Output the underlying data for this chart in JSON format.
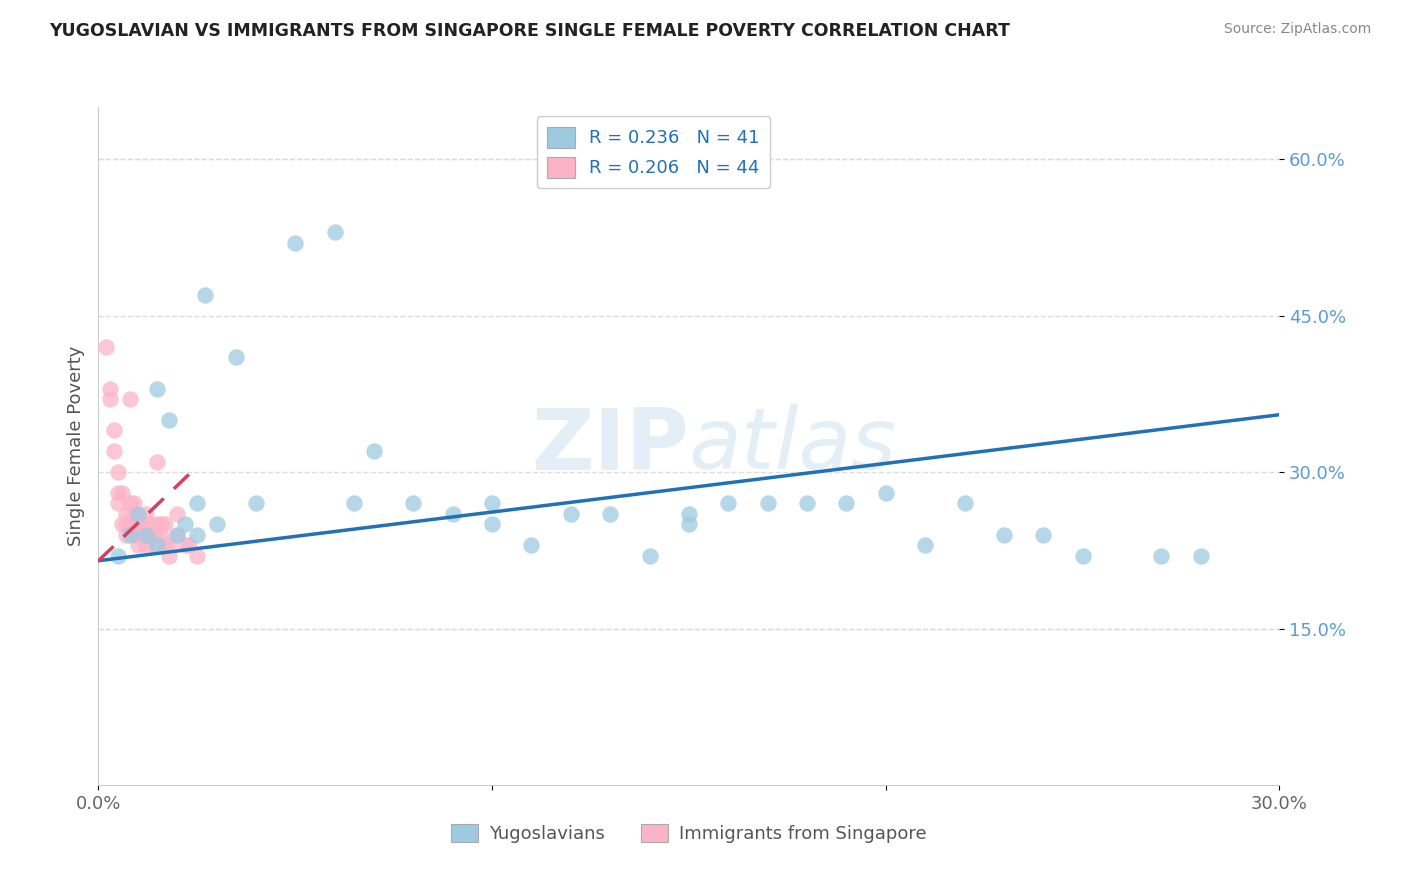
{
  "title": "YUGOSLAVIAN VS IMMIGRANTS FROM SINGAPORE SINGLE FEMALE POVERTY CORRELATION CHART",
  "source": "Source: ZipAtlas.com",
  "ylabel_label": "Single Female Poverty",
  "watermark": "ZIPatlas",
  "xlim": [
    0.0,
    0.3
  ],
  "ylim": [
    0.0,
    0.65
  ],
  "legend_r1": "R = 0.236",
  "legend_n1": "N = 41",
  "legend_r2": "R = 0.206",
  "legend_n2": "N = 44",
  "legend_label1": "Yugoslavians",
  "legend_label2": "Immigrants from Singapore",
  "color_blue": "#9ecae1",
  "color_pink": "#fbb4c7",
  "color_line_blue": "#2171b5",
  "color_line_pink": "#d44060",
  "blue_x": [
    0.005,
    0.008,
    0.01,
    0.012,
    0.015,
    0.015,
    0.018,
    0.02,
    0.022,
    0.025,
    0.025,
    0.027,
    0.03,
    0.035,
    0.04,
    0.05,
    0.06,
    0.065,
    0.07,
    0.08,
    0.09,
    0.1,
    0.1,
    0.11,
    0.12,
    0.13,
    0.14,
    0.15,
    0.15,
    0.16,
    0.17,
    0.18,
    0.19,
    0.2,
    0.21,
    0.22,
    0.23,
    0.24,
    0.25,
    0.27,
    0.28
  ],
  "blue_y": [
    0.22,
    0.24,
    0.26,
    0.24,
    0.38,
    0.23,
    0.35,
    0.24,
    0.25,
    0.24,
    0.27,
    0.47,
    0.25,
    0.41,
    0.27,
    0.52,
    0.53,
    0.27,
    0.32,
    0.27,
    0.26,
    0.27,
    0.25,
    0.23,
    0.26,
    0.26,
    0.22,
    0.26,
    0.25,
    0.27,
    0.27,
    0.27,
    0.27,
    0.28,
    0.23,
    0.27,
    0.24,
    0.24,
    0.22,
    0.22,
    0.22
  ],
  "pink_x": [
    0.002,
    0.003,
    0.003,
    0.004,
    0.004,
    0.005,
    0.005,
    0.005,
    0.006,
    0.006,
    0.007,
    0.007,
    0.007,
    0.008,
    0.008,
    0.008,
    0.009,
    0.009,
    0.009,
    0.01,
    0.01,
    0.01,
    0.011,
    0.011,
    0.012,
    0.012,
    0.012,
    0.013,
    0.013,
    0.014,
    0.014,
    0.015,
    0.015,
    0.016,
    0.016,
    0.017,
    0.017,
    0.018,
    0.018,
    0.02,
    0.02,
    0.022,
    0.023,
    0.025
  ],
  "pink_y": [
    0.42,
    0.38,
    0.37,
    0.34,
    0.32,
    0.3,
    0.28,
    0.27,
    0.28,
    0.25,
    0.26,
    0.25,
    0.24,
    0.37,
    0.27,
    0.25,
    0.27,
    0.26,
    0.24,
    0.25,
    0.24,
    0.23,
    0.25,
    0.24,
    0.26,
    0.24,
    0.23,
    0.25,
    0.24,
    0.24,
    0.23,
    0.31,
    0.25,
    0.25,
    0.24,
    0.25,
    0.23,
    0.23,
    0.22,
    0.26,
    0.24,
    0.23,
    0.23,
    0.22
  ],
  "blue_line_x0": 0.0,
  "blue_line_x1": 0.3,
  "blue_line_y0": 0.215,
  "blue_line_y1": 0.355,
  "pink_line_x0": 0.0,
  "pink_line_x1": 0.025,
  "pink_line_y0": 0.215,
  "pink_line_y1": 0.305,
  "background_color": "#ffffff",
  "grid_color": "#dddddd"
}
